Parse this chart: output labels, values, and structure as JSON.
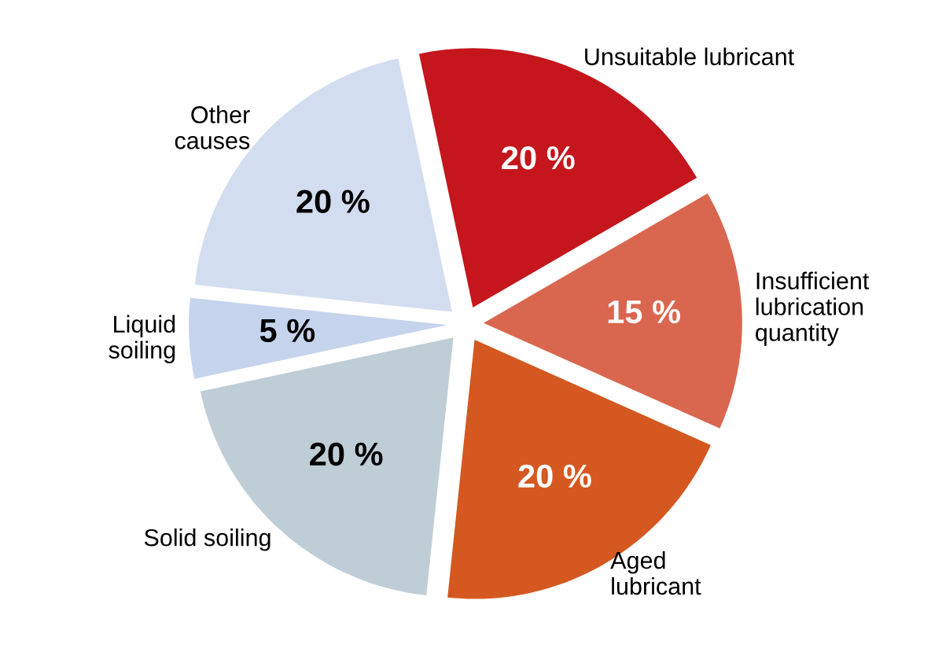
{
  "chart_data": {
    "type": "pie",
    "categories": [
      "Unsuitable lubricant",
      "Insufficient\nlubrication\nquantity",
      "Aged\nlubricant",
      "Solid soiling",
      "Liquid\nsoiling",
      "Other\ncauses"
    ],
    "values": [
      20,
      15,
      20,
      20,
      5,
      20
    ],
    "colors": [
      "#c4161c",
      "#d9674f",
      "#d4581f",
      "#bfcdd6",
      "#c6d3ec",
      "#d3ddf0"
    ],
    "value_labels": [
      "20 %",
      "15 %",
      "20 %",
      "20 %",
      "5 %",
      "20 %"
    ],
    "legend": false
  }
}
